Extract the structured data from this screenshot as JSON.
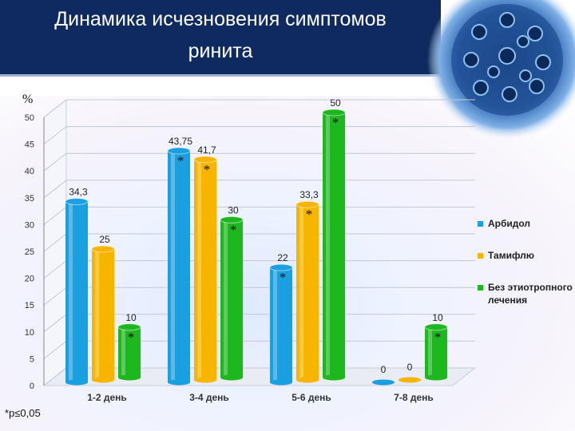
{
  "slide": {
    "title_line1": "Динамика исчезновения симптомов",
    "title_line2": "ринита",
    "footnote": "*p≤0,05"
  },
  "chart_data": {
    "type": "bar",
    "ylabel": "%",
    "ylim": [
      0,
      50
    ],
    "yticks": [
      0,
      5,
      10,
      15,
      20,
      25,
      30,
      35,
      40,
      45,
      50
    ],
    "categories": [
      "1-2 день",
      "3-4 день",
      "5-6 день",
      "7-8 день"
    ],
    "series": [
      {
        "name": "Арбидол",
        "color": "#1a9fe0",
        "values": [
          34.3,
          43.75,
          22,
          0
        ],
        "labels": [
          "34,3",
          "43,75",
          "22",
          "0"
        ],
        "stars": [
          false,
          true,
          true,
          false
        ]
      },
      {
        "name": "Тамифлю",
        "color": "#f7b500",
        "values": [
          25,
          41.7,
          33.3,
          0
        ],
        "labels": [
          "25",
          "41,7",
          "33,3",
          "0"
        ],
        "stars": [
          false,
          true,
          true,
          false
        ]
      },
      {
        "name": "Без этиотропного лечения",
        "color": "#1db81d",
        "values": [
          10,
          30,
          50,
          10
        ],
        "labels": [
          "10",
          "30",
          "50",
          "10"
        ],
        "stars": [
          true,
          true,
          true,
          true
        ]
      }
    ],
    "star_symbol": "*",
    "legend_position": "right"
  }
}
